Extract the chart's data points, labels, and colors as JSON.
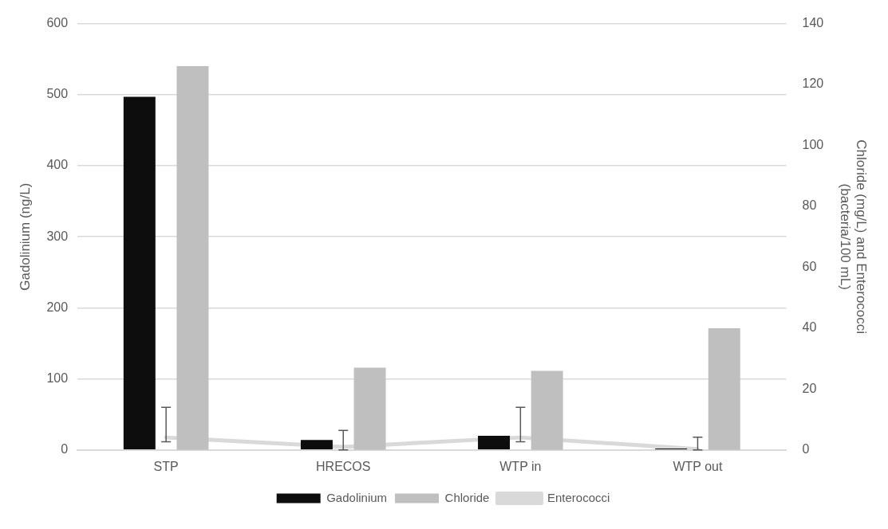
{
  "chart_data": {
    "type": "bar",
    "categories": [
      "STP",
      "HRECOS",
      "WTP in",
      "WTP out"
    ],
    "series": [
      {
        "name": "Gadolinium",
        "color": "#0d0d0d",
        "values": [
          497,
          14,
          20,
          2
        ]
      },
      {
        "name": "Chloride",
        "color": "#bfbfbf",
        "values": [
          126,
          27,
          26,
          40
        ],
        "axis": "y2"
      },
      {
        "name": "Enterococci",
        "type": "line",
        "color": "#d9d9d9",
        "values": [
          4.1,
          1,
          4.1,
          0.3
        ],
        "axis": "y2",
        "errors": [
          [
            2.7,
            14
          ],
          [
            0,
            6.4
          ],
          [
            2.7,
            14
          ],
          [
            0,
            4.2
          ]
        ]
      }
    ],
    "ylabel": "Gadolinium (ng/L)",
    "y2label": "Chloride (mg/L) and Enterococci (bacteria/100 mL)",
    "ylim": [
      0,
      600
    ],
    "yticks": [
      0,
      100,
      200,
      300,
      400,
      500,
      600
    ],
    "y2lim": [
      0,
      140
    ],
    "y2ticks": [
      0,
      20,
      40,
      60,
      80,
      100,
      120,
      140
    ],
    "grid": "y",
    "legend": "bottom",
    "marker": "none"
  }
}
